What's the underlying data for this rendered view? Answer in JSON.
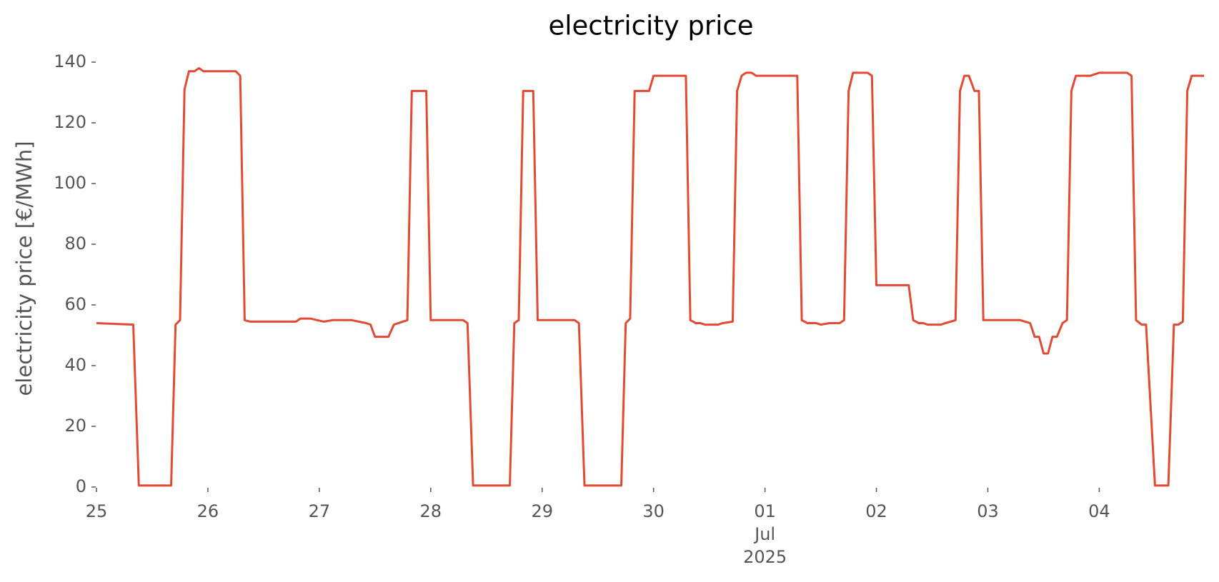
{
  "chart_data": {
    "type": "line",
    "title": "electricity price",
    "y_label": "electricity price [€/MWh]",
    "color": "#e24a33",
    "x": [
      0,
      0.33,
      0.38,
      0.67,
      0.71,
      0.75,
      0.79,
      0.83,
      0.88,
      0.92,
      0.96,
      1.25,
      1.29,
      1.33,
      1.38,
      1.79,
      1.83,
      1.92,
      2.04,
      2.12,
      2.29,
      2.42,
      2.46,
      2.5,
      2.62,
      2.67,
      2.79,
      2.83,
      2.96,
      3.0,
      3.29,
      3.33,
      3.38,
      3.71,
      3.75,
      3.79,
      3.83,
      3.92,
      3.96,
      4.29,
      4.33,
      4.38,
      4.71,
      4.75,
      4.79,
      4.83,
      4.96,
      5.0,
      5.29,
      5.33,
      5.38,
      5.42,
      5.46,
      5.58,
      5.62,
      5.71,
      5.75,
      5.79,
      5.83,
      5.88,
      5.92,
      6.29,
      6.33,
      6.38,
      6.46,
      6.5,
      6.58,
      6.67,
      6.71,
      6.75,
      6.79,
      6.92,
      6.96,
      7.0,
      7.29,
      7.33,
      7.38,
      7.42,
      7.46,
      7.58,
      7.62,
      7.71,
      7.75,
      7.79,
      7.83,
      7.88,
      7.92,
      7.96,
      8.29,
      8.38,
      8.42,
      8.46,
      8.5,
      8.54,
      8.58,
      8.62,
      8.67,
      8.71,
      8.75,
      8.79,
      8.92,
      9.0,
      9.25,
      9.29,
      9.33,
      9.38,
      9.42,
      9.5,
      9.62,
      9.67,
      9.71,
      9.75,
      9.79,
      9.83,
      9.94
    ],
    "values": [
      54,
      53.5,
      0.5,
      0.5,
      53.5,
      55,
      131,
      137,
      137,
      138,
      137,
      137,
      135.5,
      55,
      54.5,
      54.5,
      55.5,
      55.5,
      54.5,
      55,
      55,
      54,
      53.5,
      49.5,
      49.5,
      53.5,
      55,
      130.5,
      130.5,
      55,
      55,
      54,
      0.5,
      0.5,
      54,
      55,
      130.5,
      130.5,
      55,
      55,
      54,
      0.5,
      0.5,
      54,
      55.5,
      130.5,
      130.5,
      135.5,
      135.5,
      55,
      54,
      54,
      53.5,
      53.5,
      54,
      54.5,
      130.5,
      135.5,
      136.5,
      136.5,
      135.5,
      135.5,
      55,
      54,
      54,
      53.5,
      54,
      54,
      55,
      130.5,
      136.5,
      136.5,
      135.5,
      66.5,
      66.5,
      55,
      54,
      54,
      53.5,
      53.5,
      54,
      55,
      130.5,
      135.5,
      135.5,
      130.5,
      130.5,
      55,
      55,
      54,
      49.5,
      49.5,
      44,
      44,
      49.5,
      49.5,
      54,
      55,
      130.5,
      135.5,
      135.5,
      136.5,
      136.5,
      135.5,
      55,
      53.5,
      53.5,
      0.5,
      0.5,
      53.5,
      53.5,
      54.5,
      130.5,
      135.5,
      135.5
    ],
    "xlim": [
      0,
      9.94
    ],
    "xticks": [
      {
        "value": 0,
        "label": "25"
      },
      {
        "value": 1,
        "label": "26"
      },
      {
        "value": 2,
        "label": "27"
      },
      {
        "value": 3,
        "label": "28"
      },
      {
        "value": 4,
        "label": "29"
      },
      {
        "value": 5,
        "label": "30"
      },
      {
        "value": 6,
        "label": "01\nJul\n2025"
      },
      {
        "value": 7,
        "label": "02"
      },
      {
        "value": 8,
        "label": "03"
      },
      {
        "value": 9,
        "label": "04"
      }
    ],
    "ylim": [
      0,
      140
    ],
    "yticks": [
      0,
      20,
      40,
      60,
      80,
      100,
      120,
      140
    ],
    "grid": false
  }
}
